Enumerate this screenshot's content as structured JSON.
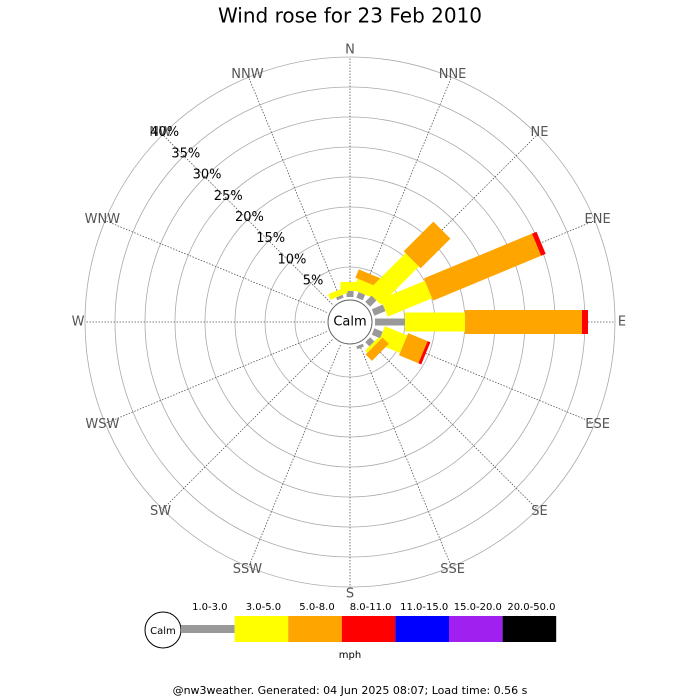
{
  "chart_data": {
    "type": "windrose",
    "title": "Wind rose for 23 Feb 2010",
    "categories": [
      "N",
      "NNE",
      "NE",
      "ENE",
      "E",
      "ESE",
      "SE",
      "SSE",
      "S",
      "SSW",
      "SW",
      "WSW",
      "W",
      "WNW",
      "NW",
      "NNW"
    ],
    "series": [
      {
        "name": "1.0-3.0",
        "color": "#999999",
        "values": [
          1,
          1,
          1.5,
          2,
          5,
          1.5,
          1,
          0.5,
          0,
          0,
          0,
          0,
          0,
          0,
          0,
          0.5
        ]
      },
      {
        "name": "3.0-5.0",
        "color": "#ffff00",
        "values": [
          1.5,
          2,
          9,
          8,
          10,
          4,
          0.5,
          0,
          0,
          0,
          0,
          0,
          0,
          0,
          0,
          1
        ]
      },
      {
        "name": "5.0-8.0",
        "color": "#ffa500",
        "values": [
          0,
          1.5,
          7,
          19.5,
          19.5,
          3.5,
          1.5,
          0,
          0,
          0,
          0,
          0,
          0,
          0,
          0,
          0
        ]
      },
      {
        "name": "8.0-11.0",
        "color": "#ff0000",
        "values": [
          0,
          0,
          0,
          0.8,
          1,
          0.5,
          0,
          0,
          0,
          0,
          0,
          0,
          0,
          0,
          0,
          0
        ]
      },
      {
        "name": "11.0-15.0",
        "color": "#0000ff",
        "values": [
          0,
          0,
          0,
          0,
          0,
          0,
          0,
          0,
          0,
          0,
          0,
          0,
          0,
          0,
          0,
          0
        ]
      },
      {
        "name": "15.0-20.0",
        "color": "#a020f0",
        "values": [
          0,
          0,
          0,
          0,
          0,
          0,
          0,
          0,
          0,
          0,
          0,
          0,
          0,
          0,
          0,
          0
        ]
      },
      {
        "name": "20.0-50.0",
        "color": "#000000",
        "values": [
          0,
          0,
          0,
          0,
          0,
          0,
          0,
          0,
          0,
          0,
          0,
          0,
          0,
          0,
          0,
          0
        ]
      }
    ],
    "rlim": [
      0,
      40
    ],
    "rticks": [
      {
        "value": 5,
        "label": "5%"
      },
      {
        "value": 10,
        "label": "10%"
      },
      {
        "value": 15,
        "label": "15%"
      },
      {
        "value": 20,
        "label": "20%"
      },
      {
        "value": 25,
        "label": "25%"
      },
      {
        "value": 30,
        "label": "30%"
      },
      {
        "value": 35,
        "label": "35%"
      },
      {
        "value": 40,
        "label": "40%"
      }
    ],
    "calm_label": "Calm",
    "unit_label": "mph",
    "footer": "@nw3weather. Generated: 04 Jun 2025 08:07; Load time: 0.56 s"
  }
}
